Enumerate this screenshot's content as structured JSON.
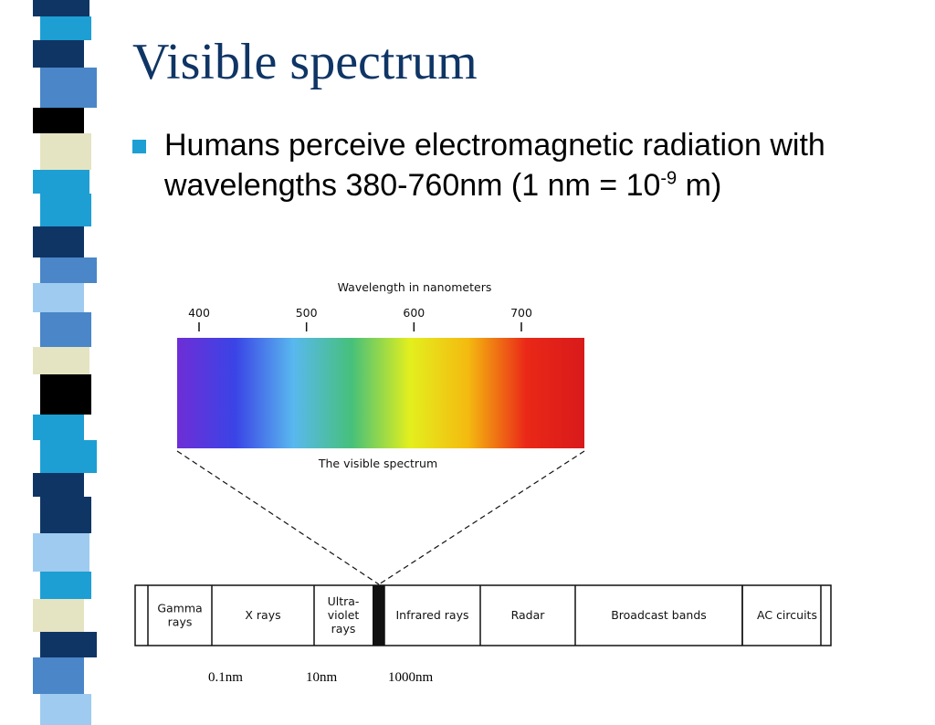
{
  "slide": {
    "title": "Visible spectrum",
    "bullet": {
      "text_before": "Humans perceive electromagnetic radiation with wavelengths 380-760nm (1 nm = 10",
      "superscript": "-9",
      "text_after": " m)",
      "marker_color": "#1d9fd3"
    },
    "title_color": "#0f3565",
    "stripe_colors": [
      "#0f3565",
      "#1d9fd3",
      "#e5e4c2",
      "#4a86c8",
      "#000000",
      "#9fcbf0"
    ]
  },
  "figure": {
    "spectrum": {
      "axis_title": "Wavelength in nanometers",
      "ticks": [
        {
          "value": 400,
          "label": "400"
        },
        {
          "value": 500,
          "label": "500"
        },
        {
          "value": 600,
          "label": "600"
        },
        {
          "value": 700,
          "label": "700"
        }
      ],
      "caption": "The visible spectrum",
      "gradient_colors": [
        "#6e2ed6",
        "#3a44e6",
        "#59b8ee",
        "#46c07a",
        "#e3ef1e",
        "#f4ba10",
        "#ea2818",
        "#d81a1a"
      ]
    },
    "em_bands": [
      {
        "lines": [
          "Gamma",
          "rays"
        ]
      },
      {
        "lines": [
          "X rays"
        ]
      },
      {
        "lines": [
          "Ultra-",
          "violet",
          "rays"
        ]
      },
      {
        "lines": [
          ""
        ]
      },
      {
        "lines": [
          "Infrared rays"
        ]
      },
      {
        "lines": [
          "Radar"
        ]
      },
      {
        "lines": [
          "Broadcast bands"
        ]
      },
      {
        "lines": [
          "AC circuits"
        ]
      }
    ],
    "scale_labels": [
      "0.1nm",
      "10nm",
      "1000nm"
    ]
  }
}
